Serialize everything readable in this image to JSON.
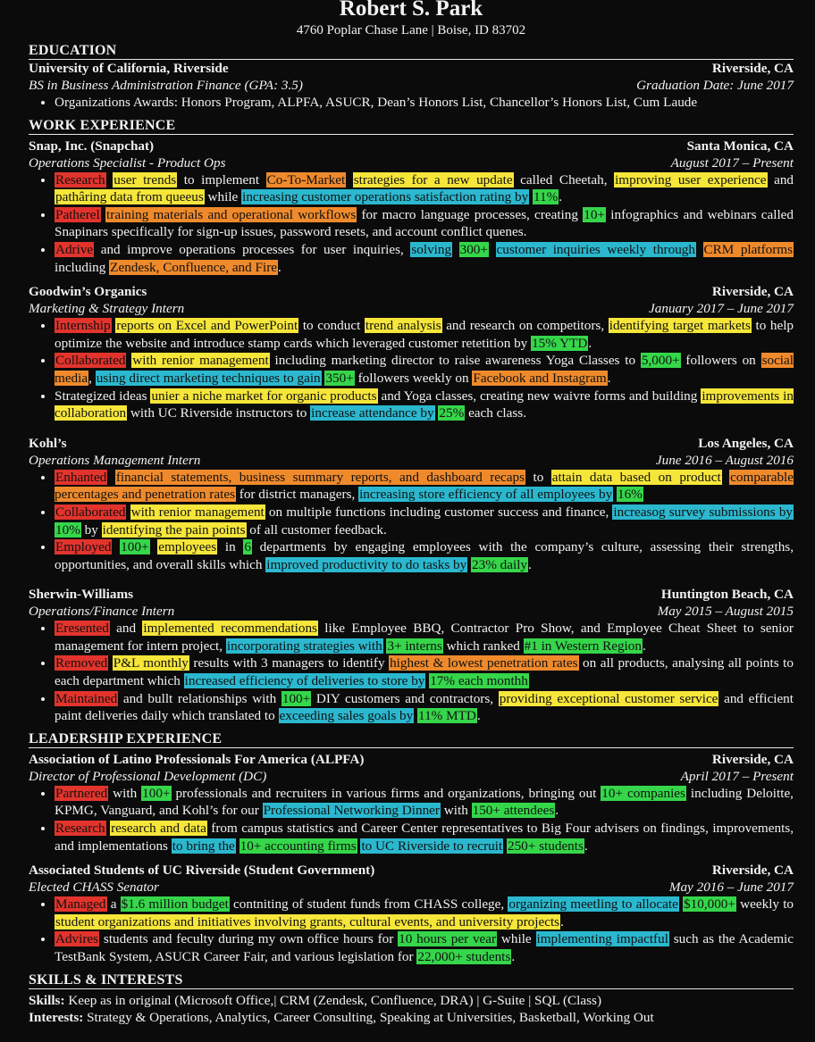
{
  "header": {
    "name": "Robert S. Park",
    "contact": "4760 Poplar Chase Lane | Boise, ID 83702"
  },
  "education": {
    "title": "EDUCATION",
    "school": "University of California, Riverside",
    "location": "Riverside, CA",
    "degree": "BS in Business Administration Finance (GPA: 3.5)",
    "grad": "Graduation Date: June 2017",
    "bullets": [
      [
        {
          "t": "Organizations Awards: Honors Program, ALPFA, ASUCR, Dean’s Honors List, Chancellor’s Honors List, Cum Laude"
        }
      ]
    ]
  },
  "work": {
    "title": "WORK EXPERIENCE",
    "jobs": [
      {
        "org": "Snap, Inc. (Snapchat)",
        "location": "Santa Monica, CA",
        "role": "Operations Specialist - Product Ops",
        "dates": "August 2017 – Present",
        "bullets": [
          [
            {
              "t": "Research",
              "c": "red"
            },
            {
              "t": " "
            },
            {
              "t": "user trends",
              "c": "yellow"
            },
            {
              "t": " to implement "
            },
            {
              "t": "Co-To-Market",
              "c": "orange"
            },
            {
              "t": " "
            },
            {
              "t": "strategies for a new update",
              "c": "yellow"
            },
            {
              "t": " called Cheetah, "
            },
            {
              "t": "improving user experience",
              "c": "yellow"
            },
            {
              "t": " and "
            },
            {
              "t": "pathâring data from queeus",
              "c": "yellow"
            },
            {
              "t": " while "
            },
            {
              "t": "increasing customer operations satisfaction rating by",
              "c": "cyan"
            },
            {
              "t": " "
            },
            {
              "t": "11%",
              "c": "green"
            },
            {
              "t": "."
            }
          ],
          [
            {
              "t": "Patherel",
              "c": "red"
            },
            {
              "t": " "
            },
            {
              "t": "training materials and operational workflows",
              "c": "orange"
            },
            {
              "t": " for macro language processes, creating "
            },
            {
              "t": "10+",
              "c": "green"
            },
            {
              "t": " infographics and webinars called Snapinars specifically for sign-up issues, password resets, and account conflict quenes."
            }
          ],
          [
            {
              "t": "Adrive",
              "c": "red"
            },
            {
              "t": " and improve operations processes for user inquiries, "
            },
            {
              "t": "solving",
              "c": "cyan"
            },
            {
              "t": " "
            },
            {
              "t": "300+",
              "c": "green"
            },
            {
              "t": " "
            },
            {
              "t": "customer inquiries weekly through",
              "c": "cyan"
            },
            {
              "t": " "
            },
            {
              "t": "CRM platforms",
              "c": "orange"
            },
            {
              "t": " including "
            },
            {
              "t": "Zendesk, Confluence, and Fire",
              "c": "orange"
            },
            {
              "t": "."
            }
          ]
        ]
      },
      {
        "org": "Goodwin’s Organics",
        "location": "Riverside, CA",
        "role": "Marketing & Strategy Intern",
        "dates": "January 2017 – June 2017",
        "bullets": [
          [
            {
              "t": "Internship",
              "c": "red"
            },
            {
              "t": " "
            },
            {
              "t": "reports on Excel and PowerPoint",
              "c": "yellow"
            },
            {
              "t": " to conduct "
            },
            {
              "t": "trend analysis",
              "c": "yellow"
            },
            {
              "t": " and research on competitors, "
            },
            {
              "t": "identifying target markets",
              "c": "yellow"
            },
            {
              "t": " to help optimize the website and introduce stamp cards which leveraged customer retetition by "
            },
            {
              "t": "15% YTD",
              "c": "green"
            },
            {
              "t": "."
            }
          ],
          [
            {
              "t": "Collaborated",
              "c": "red"
            },
            {
              "t": " "
            },
            {
              "t": "with renior management",
              "c": "yellow"
            },
            {
              "t": " including marketing director to raise awareness Yoga Classes to "
            },
            {
              "t": "5,000+",
              "c": "green"
            },
            {
              "t": " followers on "
            },
            {
              "t": "social media",
              "c": "orange"
            },
            {
              "t": ", "
            },
            {
              "t": "using direct marketing techniques to gain",
              "c": "cyan"
            },
            {
              "t": " "
            },
            {
              "t": "350+",
              "c": "green"
            },
            {
              "t": " followers weekly on "
            },
            {
              "t": "Facebook and Instagram",
              "c": "orange"
            },
            {
              "t": "."
            }
          ],
          [
            {
              "t": "Strategized ideas "
            },
            {
              "t": "unier a niche market for organic products",
              "c": "yellow"
            },
            {
              "t": " and Yoga classes, creating new waivre forms and building "
            },
            {
              "t": "improvements in collaboration",
              "c": "yellow"
            },
            {
              "t": " with UC Riverside instructors to "
            },
            {
              "t": "increase attendance by",
              "c": "cyan"
            },
            {
              "t": " "
            },
            {
              "t": "25%",
              "c": "green"
            },
            {
              "t": " each class."
            }
          ]
        ]
      },
      {
        "org": "Kohl’s",
        "location": "Los Angeles, CA",
        "role": "Operations Management Intern",
        "dates": "June 2016 – August 2016",
        "bullets": [
          [
            {
              "t": "Enhanted",
              "c": "red"
            },
            {
              "t": " "
            },
            {
              "t": "financial statements, business summary reports, and dashboard recaps",
              "c": "orange"
            },
            {
              "t": " to "
            },
            {
              "t": "attain data based on product",
              "c": "yellow"
            },
            {
              "t": " "
            },
            {
              "t": "comparable percentages and penetration rates",
              "c": "orange"
            },
            {
              "t": " for district managers, "
            },
            {
              "t": "increasing store efficiency of all employees by",
              "c": "cyan"
            },
            {
              "t": " "
            },
            {
              "t": "16%",
              "c": "green"
            }
          ],
          [
            {
              "t": "Collaborated",
              "c": "red"
            },
            {
              "t": " "
            },
            {
              "t": "with renior management",
              "c": "yellow"
            },
            {
              "t": " on multiple functions including customer success and finance, "
            },
            {
              "t": "increasog survey submissions by",
              "c": "cyan"
            },
            {
              "t": " "
            },
            {
              "t": "10%",
              "c": "green"
            },
            {
              "t": " by "
            },
            {
              "t": "identifying the pain points",
              "c": "yellow"
            },
            {
              "t": " of all customer feedback."
            }
          ],
          [
            {
              "t": "Employed",
              "c": "red"
            },
            {
              "t": " "
            },
            {
              "t": "100+",
              "c": "green"
            },
            {
              "t": " "
            },
            {
              "t": "employees",
              "c": "yellow"
            },
            {
              "t": " in "
            },
            {
              "t": "6",
              "c": "green"
            },
            {
              "t": " departments by engaging employees with the company’s culture, assessing their strengths, opportunities, and overall skills which "
            },
            {
              "t": "improved productivity to do tasks by",
              "c": "cyan"
            },
            {
              "t": " "
            },
            {
              "t": "23% daily",
              "c": "green"
            },
            {
              "t": "."
            }
          ]
        ]
      },
      {
        "org": "Sherwin-Williams",
        "location": "Huntington Beach, CA",
        "role": "Operations/Finance Intern",
        "dates": "May 2015 – August 2015",
        "bullets": [
          [
            {
              "t": "Eresented",
              "c": "red"
            },
            {
              "t": " and "
            },
            {
              "t": "implemented recommendations",
              "c": "yellow"
            },
            {
              "t": " like Employee BBQ, Contractor Pro Show, and Employee Cheat Sheet to senior management for intern project, "
            },
            {
              "t": "incorporating strategies with",
              "c": "cyan"
            },
            {
              "t": " "
            },
            {
              "t": "3+ interns",
              "c": "green"
            },
            {
              "t": " which ranked "
            },
            {
              "t": "#1 in Western Region",
              "c": "green"
            },
            {
              "t": "."
            }
          ],
          [
            {
              "t": "Removed",
              "c": "red"
            },
            {
              "t": " "
            },
            {
              "t": "P&L monthly",
              "c": "yellow"
            },
            {
              "t": " results with 3 managers to identify "
            },
            {
              "t": "highest & lowest penetration rates",
              "c": "orange"
            },
            {
              "t": " on all products, analysing all points to each department which "
            },
            {
              "t": "increased efficiency of deliveries to store by",
              "c": "cyan"
            },
            {
              "t": " "
            },
            {
              "t": "17% each monthh",
              "c": "green"
            }
          ],
          [
            {
              "t": "Maintained",
              "c": "red"
            },
            {
              "t": " and bullt relationships with "
            },
            {
              "t": "100+",
              "c": "green"
            },
            {
              "t": " DIY customers and contractors, "
            },
            {
              "t": "providing exceptional customer service",
              "c": "yellow"
            },
            {
              "t": " and efficient paint deliveries daily which translated to "
            },
            {
              "t": "exceeding sales goals by",
              "c": "cyan"
            },
            {
              "t": " "
            },
            {
              "t": "11% MTD",
              "c": "green"
            },
            {
              "t": "."
            }
          ]
        ]
      }
    ]
  },
  "leadership": {
    "title": "LEADERSHIP EXPERIENCE",
    "jobs": [
      {
        "org": "Association of Latino Professionals For America (ALPFA)",
        "location": "Riverside, CA",
        "role": "Director of Professional Development (DC)",
        "dates": "April 2017 – Present",
        "bullets": [
          [
            {
              "t": "Partnered",
              "c": "red"
            },
            {
              "t": " with "
            },
            {
              "t": "100+",
              "c": "green"
            },
            {
              "t": " professionals and recruiters in various firms and organizations, bringing out "
            },
            {
              "t": "10+ companies",
              "c": "green"
            },
            {
              "t": " including Deloitte, KPMG, Vanguard, and Kohl’s for our "
            },
            {
              "t": "Professional Networking Dinner",
              "c": "cyan"
            },
            {
              "t": " with "
            },
            {
              "t": "150+ attendees",
              "c": "green"
            },
            {
              "t": "."
            }
          ],
          [
            {
              "t": "Research",
              "c": "red"
            },
            {
              "t": " "
            },
            {
              "t": "research and data",
              "c": "yellow"
            },
            {
              "t": " from campus statistics and Career Center representatives to Big Four advisers on findings, improvements, and implementations "
            },
            {
              "t": "to bring the",
              "c": "cyan"
            },
            {
              "t": " "
            },
            {
              "t": "10+ accounting firms",
              "c": "green"
            },
            {
              "t": " "
            },
            {
              "t": "to UC Riverside to recruit",
              "c": "cyan"
            },
            {
              "t": " "
            },
            {
              "t": "250+ students",
              "c": "green"
            },
            {
              "t": "."
            }
          ]
        ]
      },
      {
        "org": "Associated Students of UC Riverside (Student Government)",
        "location": "Riverside, CA",
        "role": "Elected CHASS Senator",
        "dates": "May 2016 – June 2017",
        "bullets": [
          [
            {
              "t": "Managed",
              "c": "red"
            },
            {
              "t": " a "
            },
            {
              "t": "$1.6 million budget",
              "c": "green"
            },
            {
              "t": " contniting of student funds from CHASS college, "
            },
            {
              "t": "organizing meetling to allocate",
              "c": "cyan"
            },
            {
              "t": " "
            },
            {
              "t": "$10,000+",
              "c": "green"
            },
            {
              "t": " weekly to "
            },
            {
              "t": "student organizations and initiatives involving grants, cultural events, and university projects",
              "c": "yellow"
            },
            {
              "t": "."
            }
          ],
          [
            {
              "t": "Advires",
              "c": "red"
            },
            {
              "t": " students and feculty during my own office hours for "
            },
            {
              "t": "10 hours per vear",
              "c": "green"
            },
            {
              "t": " while "
            },
            {
              "t": "implementing impactful",
              "c": "cyan"
            },
            {
              "t": " such as the Academic TestBank System, ASUCR Career Fair, and various legislation for "
            },
            {
              "t": "22,000+ students",
              "c": "green"
            },
            {
              "t": "."
            }
          ]
        ]
      }
    ]
  },
  "skills": {
    "title": "SKILLS & INTERESTS",
    "skills_label": "Skills:",
    "skills_text": "Keep as in original (Microsoft Office,| CRM (Zendesk, Confluence, DRA) | G-Suite | SQL (Class)",
    "interests_label": "Interests:",
    "interests_text": "Strategy & Operations, Analytics, Career Consulting, Speaking at Universities, Basketball, Working Out"
  },
  "colors": {
    "background": "#0b0b0b",
    "text": "#f2f2f2",
    "red": "#e2342d",
    "orange": "#ef8a2c",
    "yellow": "#f6e63a",
    "cyan": "#2bb8cf",
    "green": "#35d64a"
  }
}
